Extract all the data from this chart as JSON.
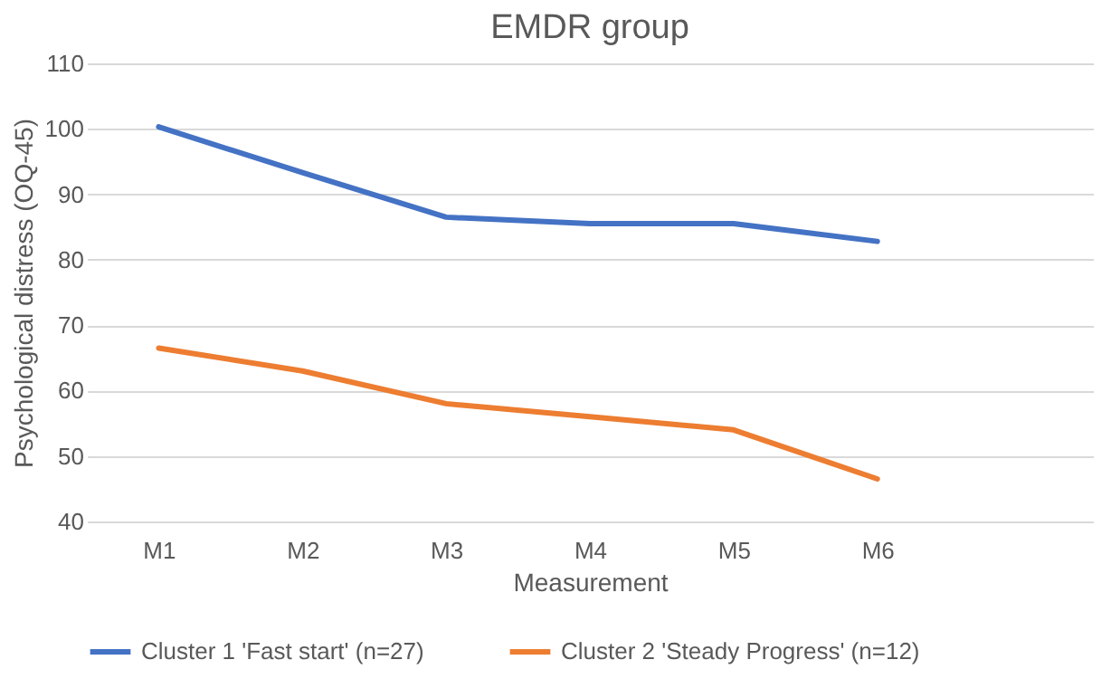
{
  "chart_data": {
    "type": "line",
    "title": "EMDR group",
    "xlabel": "Measurement",
    "ylabel": "Psychological distress (OQ-45)",
    "categories": [
      "M1",
      "M2",
      "M3",
      "M4",
      "M5",
      "M6",
      null
    ],
    "series": [
      {
        "name": "Cluster 1 'Fast start' (n=27)",
        "color": "#4472c4",
        "values": [
          100.3,
          93.3,
          86.5,
          85.5,
          85.5,
          82.8,
          null
        ]
      },
      {
        "name": "Cluster 2 'Steady Progress' (n=12)",
        "color": "#ed7d31",
        "values": [
          66.5,
          63,
          58,
          56,
          54,
          46.5,
          null
        ]
      }
    ],
    "ylim": [
      40,
      110
    ],
    "yticks": [
      40,
      50,
      60,
      70,
      80,
      90,
      100,
      110
    ],
    "grid": "y",
    "legend": "bottom",
    "marker": "none",
    "line_style": "solid"
  }
}
